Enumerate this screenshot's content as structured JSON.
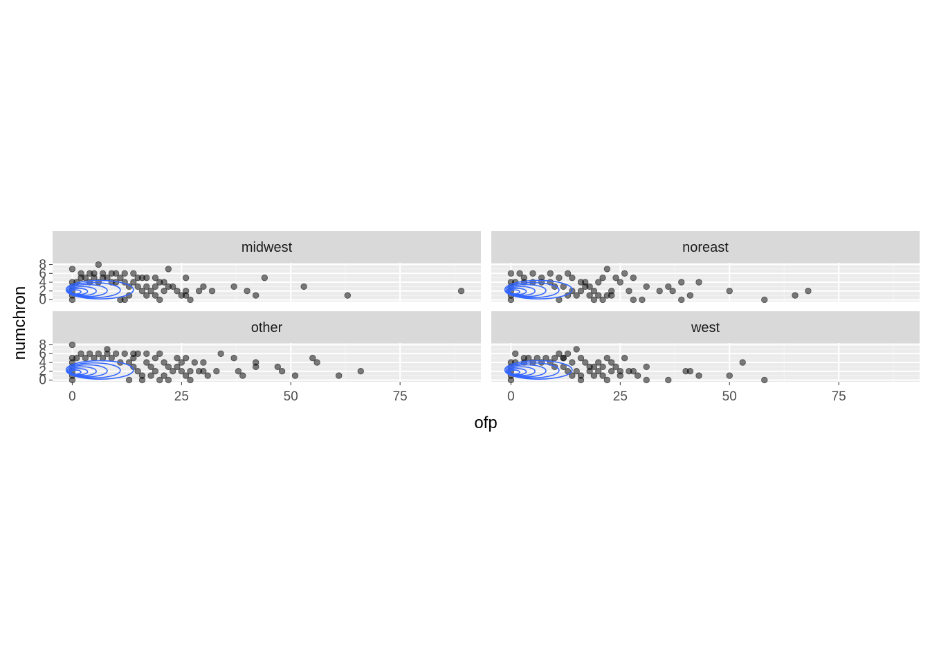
{
  "colors": {
    "panel_bg": "#ebebeb",
    "strip_bg": "#d9d9d9",
    "grid_major": "#ffffff",
    "point_fill": "#000000",
    "contour": "#3366ff"
  },
  "chart_data": {
    "type": "scatter",
    "facets": [
      "midwest",
      "noreast",
      "other",
      "west"
    ],
    "xlabel": "ofp",
    "ylabel": "numchron",
    "xlim": [
      -4.5,
      93.5
    ],
    "ylim": [
      -0.4,
      8.4
    ],
    "x_ticks": [
      0,
      25,
      50,
      75
    ],
    "x_tick_labels": [
      "0",
      "25",
      "50",
      "75"
    ],
    "y_ticks": [
      0,
      2,
      4,
      6,
      8
    ],
    "y_tick_labels": [
      "0",
      "2",
      "4",
      "6",
      "8"
    ],
    "point_alpha": 0.5,
    "density_contours": true,
    "panels": [
      {
        "name": "midwest",
        "points": [
          [
            0,
            7
          ],
          [
            2,
            6
          ],
          [
            4,
            6
          ],
          [
            5,
            6
          ],
          [
            6,
            8
          ],
          [
            7,
            6
          ],
          [
            9,
            6
          ],
          [
            10,
            6
          ],
          [
            12,
            6
          ],
          [
            14,
            6
          ],
          [
            16,
            5
          ],
          [
            17,
            5
          ],
          [
            19,
            5
          ],
          [
            20,
            4
          ],
          [
            21,
            4
          ],
          [
            22,
            7
          ],
          [
            22,
            3
          ],
          [
            23,
            3
          ],
          [
            24,
            2
          ],
          [
            25,
            1
          ],
          [
            26,
            5
          ],
          [
            26,
            2
          ],
          [
            26,
            1
          ],
          [
            27,
            0
          ],
          [
            29,
            2
          ],
          [
            30,
            3
          ],
          [
            32,
            2
          ],
          [
            37,
            3
          ],
          [
            40,
            2
          ],
          [
            42,
            1
          ],
          [
            44,
            5
          ],
          [
            53,
            3
          ],
          [
            63,
            1
          ],
          [
            89,
            2
          ],
          [
            0,
            0
          ],
          [
            0,
            1
          ],
          [
            0,
            2
          ],
          [
            0,
            3
          ],
          [
            0,
            4
          ],
          [
            1,
            4
          ],
          [
            2,
            5
          ],
          [
            3,
            5
          ],
          [
            4,
            4
          ],
          [
            5,
            5
          ],
          [
            6,
            4
          ],
          [
            7,
            5
          ],
          [
            8,
            5
          ],
          [
            9,
            4
          ],
          [
            10,
            4
          ],
          [
            11,
            5
          ],
          [
            12,
            4
          ],
          [
            13,
            3
          ],
          [
            14,
            4
          ],
          [
            15,
            3
          ],
          [
            16,
            2
          ],
          [
            17,
            1
          ],
          [
            18,
            2
          ],
          [
            19,
            3
          ],
          [
            20,
            0
          ],
          [
            21,
            2
          ],
          [
            15,
            5
          ],
          [
            17,
            3
          ],
          [
            19,
            1
          ],
          [
            13,
            1
          ],
          [
            11,
            0
          ],
          [
            12,
            0
          ]
        ]
      },
      {
        "name": "noreast",
        "points": [
          [
            0,
            6
          ],
          [
            2,
            6
          ],
          [
            3,
            5
          ],
          [
            5,
            6
          ],
          [
            7,
            5
          ],
          [
            9,
            6
          ],
          [
            11,
            5
          ],
          [
            13,
            6
          ],
          [
            14,
            5
          ],
          [
            16,
            4
          ],
          [
            17,
            3
          ],
          [
            18,
            3
          ],
          [
            19,
            2
          ],
          [
            20,
            4
          ],
          [
            21,
            5
          ],
          [
            22,
            7
          ],
          [
            22,
            1
          ],
          [
            23,
            2
          ],
          [
            24,
            5
          ],
          [
            25,
            4
          ],
          [
            26,
            6
          ],
          [
            27,
            2
          ],
          [
            28,
            5
          ],
          [
            28,
            0
          ],
          [
            30,
            0
          ],
          [
            31,
            3
          ],
          [
            34,
            2
          ],
          [
            36,
            3
          ],
          [
            37,
            2
          ],
          [
            39,
            4
          ],
          [
            39,
            0
          ],
          [
            41,
            1
          ],
          [
            43,
            4
          ],
          [
            50,
            2
          ],
          [
            58,
            0
          ],
          [
            65,
            1
          ],
          [
            68,
            2
          ],
          [
            0,
            0
          ],
          [
            0,
            1
          ],
          [
            0,
            2
          ],
          [
            0,
            3
          ],
          [
            0,
            4
          ],
          [
            1,
            4
          ],
          [
            3,
            4
          ],
          [
            5,
            4
          ],
          [
            7,
            4
          ],
          [
            9,
            4
          ],
          [
            10,
            3
          ],
          [
            12,
            3
          ],
          [
            14,
            2
          ],
          [
            15,
            1
          ],
          [
            16,
            2
          ],
          [
            18,
            1
          ],
          [
            19,
            0
          ],
          [
            20,
            1
          ],
          [
            21,
            0
          ],
          [
            23,
            1
          ],
          [
            17,
            4
          ],
          [
            13,
            1
          ],
          [
            11,
            0
          ]
        ]
      },
      {
        "name": "other",
        "points": [
          [
            0,
            8
          ],
          [
            2,
            6
          ],
          [
            4,
            6
          ],
          [
            6,
            6
          ],
          [
            8,
            6
          ],
          [
            10,
            6
          ],
          [
            12,
            6
          ],
          [
            14,
            6
          ],
          [
            15,
            6
          ],
          [
            17,
            6
          ],
          [
            19,
            5
          ],
          [
            20,
            6
          ],
          [
            21,
            4
          ],
          [
            22,
            3
          ],
          [
            23,
            2
          ],
          [
            24,
            5
          ],
          [
            25,
            4
          ],
          [
            26,
            5
          ],
          [
            27,
            2
          ],
          [
            28,
            4
          ],
          [
            29,
            2
          ],
          [
            30,
            4
          ],
          [
            30,
            2
          ],
          [
            31,
            1
          ],
          [
            33,
            2
          ],
          [
            34,
            6
          ],
          [
            37,
            5
          ],
          [
            38,
            2
          ],
          [
            39,
            1
          ],
          [
            42,
            4
          ],
          [
            42,
            3
          ],
          [
            47,
            3
          ],
          [
            48,
            2
          ],
          [
            51,
            1
          ],
          [
            55,
            5
          ],
          [
            56,
            4
          ],
          [
            61,
            1
          ],
          [
            66,
            2
          ],
          [
            8,
            7
          ],
          [
            0,
            0
          ],
          [
            0,
            1
          ],
          [
            0,
            2
          ],
          [
            0,
            3
          ],
          [
            0,
            4
          ],
          [
            0,
            5
          ],
          [
            1,
            5
          ],
          [
            3,
            5
          ],
          [
            5,
            5
          ],
          [
            7,
            5
          ],
          [
            9,
            5
          ],
          [
            11,
            4
          ],
          [
            13,
            4
          ],
          [
            14,
            3
          ],
          [
            15,
            2
          ],
          [
            16,
            1
          ],
          [
            16,
            0
          ],
          [
            18,
            3
          ],
          [
            18,
            1
          ],
          [
            19,
            2
          ],
          [
            20,
            0
          ],
          [
            21,
            1
          ],
          [
            22,
            0
          ],
          [
            24,
            3
          ],
          [
            25,
            2
          ],
          [
            26,
            1
          ],
          [
            27,
            0
          ],
          [
            13,
            0
          ],
          [
            14,
            5
          ],
          [
            17,
            4
          ]
        ]
      },
      {
        "name": "west",
        "points": [
          [
            1,
            6
          ],
          [
            3,
            5
          ],
          [
            4,
            5
          ],
          [
            6,
            5
          ],
          [
            8,
            5
          ],
          [
            10,
            5
          ],
          [
            11,
            6
          ],
          [
            12,
            5
          ],
          [
            13,
            6
          ],
          [
            15,
            7
          ],
          [
            16,
            5
          ],
          [
            17,
            4
          ],
          [
            18,
            3
          ],
          [
            19,
            3
          ],
          [
            20,
            4
          ],
          [
            21,
            3
          ],
          [
            22,
            5
          ],
          [
            23,
            4
          ],
          [
            24,
            3
          ],
          [
            25,
            2
          ],
          [
            25,
            1
          ],
          [
            26,
            5
          ],
          [
            27,
            2
          ],
          [
            28,
            2
          ],
          [
            29,
            1
          ],
          [
            31,
            3
          ],
          [
            31,
            0
          ],
          [
            36,
            0
          ],
          [
            40,
            2
          ],
          [
            41,
            2
          ],
          [
            43,
            1
          ],
          [
            50,
            1
          ],
          [
            53,
            4
          ],
          [
            58,
            0
          ],
          [
            0,
            0
          ],
          [
            0,
            1
          ],
          [
            0,
            2
          ],
          [
            0,
            3
          ],
          [
            0,
            4
          ],
          [
            1,
            4
          ],
          [
            3,
            4
          ],
          [
            5,
            4
          ],
          [
            7,
            4
          ],
          [
            9,
            4
          ],
          [
            10,
            3
          ],
          [
            12,
            3
          ],
          [
            13,
            2
          ],
          [
            14,
            1
          ],
          [
            15,
            2
          ],
          [
            16,
            1
          ],
          [
            16,
            0
          ],
          [
            18,
            2
          ],
          [
            19,
            1
          ],
          [
            20,
            2
          ],
          [
            21,
            1
          ],
          [
            22,
            0
          ],
          [
            23,
            2
          ],
          [
            12,
            5
          ],
          [
            14,
            4
          ]
        ]
      }
    ]
  }
}
